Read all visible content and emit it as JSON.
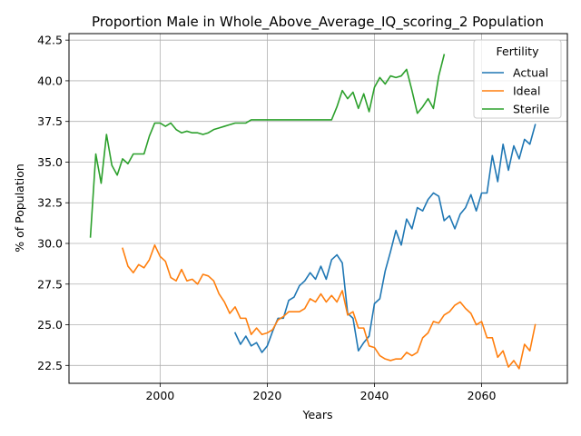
{
  "chart_data": {
    "type": "line",
    "title": "Proportion Male in Whole_Above_Average_IQ_scoring_2 Population",
    "xlabel": "Years",
    "ylabel": "% of Population",
    "xlim": [
      1983,
      2076
    ],
    "ylim": [
      21.4,
      42.9
    ],
    "x_ticks": [
      2000,
      2020,
      2040,
      2060
    ],
    "y_ticks": [
      22.5,
      25.0,
      27.5,
      30.0,
      32.5,
      35.0,
      37.5,
      40.0,
      42.5
    ],
    "grid": true,
    "legend": {
      "title": "Fertility",
      "placement": "top-right"
    },
    "series": [
      {
        "name": "Actual",
        "color": "#1f77b4",
        "x": [
          2014,
          2015,
          2016,
          2017,
          2018,
          2019,
          2020,
          2021,
          2022,
          2023,
          2024,
          2025,
          2026,
          2027,
          2028,
          2029,
          2030,
          2031,
          2032,
          2033,
          2034,
          2035,
          2036,
          2037,
          2038,
          2039,
          2040,
          2041,
          2042,
          2043,
          2044,
          2045,
          2046,
          2047,
          2048,
          2049,
          2050,
          2051,
          2052,
          2053,
          2054,
          2055,
          2056,
          2057,
          2058,
          2059,
          2060,
          2061,
          2062,
          2063,
          2064,
          2065,
          2066,
          2067,
          2068,
          2069,
          2070
        ],
        "values": [
          24.5,
          23.8,
          24.3,
          23.7,
          23.9,
          23.3,
          23.7,
          24.6,
          25.4,
          25.4,
          26.5,
          26.7,
          27.4,
          27.7,
          28.2,
          27.8,
          28.6,
          27.8,
          29.0,
          29.3,
          28.8,
          25.7,
          25.4,
          23.4,
          23.9,
          24.3,
          26.3,
          26.6,
          28.3,
          29.5,
          30.8,
          29.9,
          31.5,
          30.9,
          32.2,
          32.0,
          32.7,
          33.1,
          32.9,
          31.4,
          31.7,
          30.9,
          31.8,
          32.2,
          33.0,
          32.0,
          33.1,
          33.1,
          35.4,
          33.8,
          36.1,
          34.5,
          36.0,
          35.2,
          36.4,
          36.1,
          37.3
        ]
      },
      {
        "name": "Ideal",
        "color": "#ff7f0e",
        "x": [
          1993,
          1994,
          1995,
          1996,
          1997,
          1998,
          1999,
          2000,
          2001,
          2002,
          2003,
          2004,
          2005,
          2006,
          2007,
          2008,
          2009,
          2010,
          2011,
          2012,
          2013,
          2014,
          2015,
          2016,
          2017,
          2018,
          2019,
          2020,
          2021,
          2022,
          2023,
          2024,
          2025,
          2026,
          2027,
          2028,
          2029,
          2030,
          2031,
          2032,
          2033,
          2034,
          2035,
          2036,
          2037,
          2038,
          2039,
          2040,
          2041,
          2042,
          2043,
          2044,
          2045,
          2046,
          2047,
          2048,
          2049,
          2050,
          2051,
          2052,
          2053,
          2054,
          2055,
          2056,
          2057,
          2058,
          2059,
          2060,
          2061,
          2062,
          2063,
          2064,
          2065,
          2066,
          2067,
          2068,
          2069,
          2070
        ],
        "values": [
          29.7,
          28.6,
          28.2,
          28.7,
          28.5,
          29.0,
          29.9,
          29.2,
          28.9,
          27.9,
          27.7,
          28.4,
          27.7,
          27.8,
          27.5,
          28.1,
          28.0,
          27.7,
          26.9,
          26.4,
          25.7,
          26.1,
          25.4,
          25.4,
          24.4,
          24.8,
          24.4,
          24.5,
          24.7,
          25.3,
          25.5,
          25.8,
          25.8,
          25.8,
          26.0,
          26.6,
          26.4,
          26.9,
          26.4,
          26.8,
          26.4,
          27.1,
          25.6,
          25.8,
          24.8,
          24.8,
          23.7,
          23.6,
          23.1,
          22.9,
          22.8,
          22.9,
          22.9,
          23.3,
          23.1,
          23.3,
          24.2,
          24.5,
          25.2,
          25.1,
          25.6,
          25.8,
          26.2,
          26.4,
          26.0,
          25.7,
          25.0,
          25.2,
          24.2,
          24.2,
          23.0,
          23.4,
          22.4,
          22.8,
          22.3,
          23.8,
          23.4,
          25.0
        ]
      },
      {
        "name": "Sterile",
        "color": "#2ca02c",
        "x": [
          1987,
          1988,
          1989,
          1990,
          1991,
          1992,
          1993,
          1994,
          1995,
          1996,
          1997,
          1998,
          1999,
          2000,
          2001,
          2002,
          2003,
          2004,
          2005,
          2006,
          2007,
          2008,
          2009,
          2010,
          2011,
          2012,
          2013,
          2014,
          2015,
          2016,
          2017,
          2018,
          2019,
          2020,
          2021,
          2022,
          2023,
          2024,
          2025,
          2026,
          2027,
          2028,
          2029,
          2030,
          2031,
          2032,
          2033,
          2034,
          2035,
          2036,
          2037,
          2038,
          2039,
          2040,
          2041,
          2042,
          2043,
          2044,
          2045,
          2046,
          2047,
          2048,
          2049,
          2050,
          2051,
          2052,
          2053
        ],
        "values": [
          30.4,
          35.5,
          33.7,
          36.7,
          34.8,
          34.2,
          35.2,
          34.9,
          35.5,
          35.5,
          35.5,
          36.6,
          37.4,
          37.4,
          37.2,
          37.4,
          37.0,
          36.8,
          36.9,
          36.8,
          36.8,
          36.7,
          36.8,
          37.0,
          37.1,
          37.2,
          37.3,
          37.4,
          37.4,
          37.4,
          37.6,
          37.6,
          37.6,
          37.6,
          37.6,
          37.6,
          37.6,
          37.6,
          37.6,
          37.6,
          37.6,
          37.6,
          37.6,
          37.6,
          37.6,
          37.6,
          38.4,
          39.4,
          38.9,
          39.3,
          38.3,
          39.2,
          38.1,
          39.6,
          40.2,
          39.8,
          40.3,
          40.2,
          40.3,
          40.7,
          39.4,
          38.0,
          38.4,
          38.9,
          38.3,
          40.3,
          41.6
        ]
      }
    ]
  }
}
